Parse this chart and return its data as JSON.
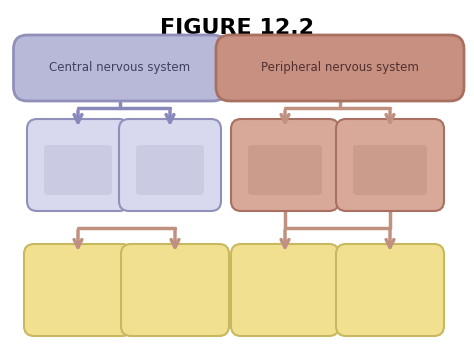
{
  "title": "FIGURE 12.2",
  "title_fontsize": 16,
  "title_fontweight": "bold",
  "background_color": "#ffffff",
  "cns_label": "Central nervous system",
  "pns_label": "Peripheral nervous system",
  "cns_box_fill": "#b8b8d8",
  "cns_box_edge": "#9090bb",
  "cns_child_fill": "#d8d8ee",
  "cns_child_edge": "#9090bb",
  "cns_inner_fill": "#a8a8c8",
  "pns_box_fill": "#c89080",
  "pns_box_edge": "#a87060",
  "pns_child_fill": "#d8a898",
  "pns_child_edge": "#a87060",
  "pns_inner_fill": "#b08070",
  "yellow_fill": "#f0e090",
  "yellow_edge": "#c8b860",
  "yellow_inner": "#d8c870",
  "arrow_cns": "#8888bb",
  "arrow_pns": "#c09080",
  "fig_w": 4.74,
  "fig_h": 3.55,
  "dpi": 100
}
